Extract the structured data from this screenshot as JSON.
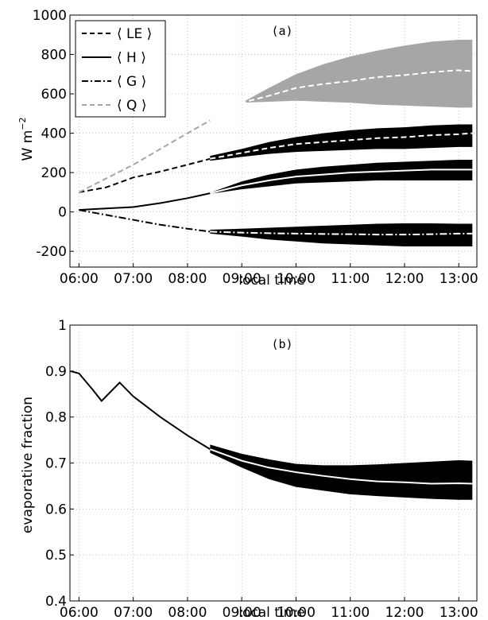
{
  "colors": {
    "black": "#000000",
    "q_gray": "#a6a6a6",
    "white": "#ffffff",
    "grid": "#b0b0b0"
  },
  "chart_data": [
    {
      "type": "line",
      "panel_label": "(a)",
      "xlabel": "local time",
      "ylabel": "W m",
      "ylabel_superscript": "−2",
      "xlim": [
        "05:50",
        "13:20"
      ],
      "ylim": [
        -280,
        1000
      ],
      "x_ticks": [
        "06:00",
        "07:00",
        "08:00",
        "09:00",
        "10:00",
        "11:00",
        "12:00",
        "13:00"
      ],
      "y_ticks": [
        -200,
        0,
        200,
        400,
        600,
        800,
        1000
      ],
      "grid": true,
      "legend_position": "top-left",
      "legend_entries": [
        "⟨ LE ⟩",
        "⟨ H ⟩",
        "⟨ G ⟩",
        "⟨ Q ⟩"
      ],
      "ensemble_start": "08:25",
      "x": [
        "06:00",
        "06:30",
        "07:00",
        "07:30",
        "08:00",
        "08:25",
        "09:00",
        "09:30",
        "10:00",
        "10:30",
        "11:00",
        "11:30",
        "12:00",
        "12:30",
        "13:00",
        "13:15"
      ],
      "series": [
        {
          "name": "⟨ LE ⟩",
          "style": "dashed-black",
          "mean": [
            100,
            125,
            175,
            205,
            240,
            270,
            300,
            325,
            345,
            355,
            365,
            375,
            380,
            390,
            395,
            400
          ],
          "lower": [
            null,
            null,
            null,
            null,
            null,
            260,
            280,
            295,
            305,
            310,
            315,
            320,
            320,
            325,
            330,
            330
          ],
          "upper": [
            null,
            null,
            null,
            null,
            null,
            285,
            320,
            355,
            380,
            400,
            415,
            425,
            430,
            440,
            445,
            445
          ]
        },
        {
          "name": "⟨ H ⟩",
          "style": "solid-black",
          "mean": [
            10,
            18,
            25,
            45,
            70,
            95,
            135,
            160,
            180,
            190,
            200,
            205,
            210,
            215,
            215,
            215
          ],
          "lower": [
            null,
            null,
            null,
            null,
            null,
            92,
            115,
            130,
            145,
            150,
            155,
            160,
            160,
            160,
            160,
            160
          ],
          "upper": [
            null,
            null,
            null,
            null,
            null,
            98,
            155,
            190,
            215,
            230,
            240,
            250,
            255,
            260,
            265,
            265
          ]
        },
        {
          "name": "⟨ G ⟩",
          "style": "dashdot-black",
          "mean": [
            10,
            -15,
            -40,
            -65,
            -85,
            -100,
            -105,
            -108,
            -110,
            -112,
            -113,
            -115,
            -115,
            -113,
            -110,
            -110
          ],
          "lower": [
            null,
            null,
            null,
            null,
            null,
            -110,
            -125,
            -140,
            -150,
            -160,
            -165,
            -170,
            -175,
            -175,
            -175,
            -175
          ],
          "upper": [
            null,
            null,
            null,
            null,
            null,
            -90,
            -85,
            -80,
            -75,
            -70,
            -65,
            -60,
            -58,
            -58,
            -60,
            -60
          ]
        },
        {
          "name": "⟨ Q ⟩",
          "style": "dashed-gray",
          "mean": [
            100,
            170,
            240,
            320,
            400,
            465,
            555,
            590,
            630,
            650,
            665,
            685,
            695,
            710,
            720,
            715
          ],
          "lower": [
            null,
            null,
            null,
            null,
            null,
            465,
            555,
            560,
            565,
            560,
            555,
            545,
            540,
            535,
            530,
            530
          ],
          "upper": [
            null,
            null,
            null,
            null,
            null,
            465,
            555,
            630,
            700,
            750,
            790,
            820,
            845,
            865,
            875,
            875
          ]
        }
      ]
    },
    {
      "type": "line",
      "panel_label": "(b)",
      "xlabel": "local time",
      "ylabel": "evaporative fraction",
      "xlim": [
        "05:50",
        "13:20"
      ],
      "ylim": [
        0.4,
        1
      ],
      "x_ticks": [
        "06:00",
        "07:00",
        "08:00",
        "09:00",
        "10:00",
        "11:00",
        "12:00",
        "13:00"
      ],
      "y_ticks": [
        0.4,
        0.5,
        0.6,
        0.7,
        0.8,
        0.9,
        1
      ],
      "grid": true,
      "ensemble_start": "08:25",
      "x": [
        "05:50",
        "06:00",
        "06:15",
        "06:25",
        "06:35",
        "06:45",
        "07:00",
        "07:30",
        "08:00",
        "08:25",
        "09:00",
        "09:30",
        "10:00",
        "10:30",
        "11:00",
        "11:30",
        "12:00",
        "12:30",
        "13:00",
        "13:15"
      ],
      "series": [
        {
          "style": "solid-black",
          "mean": [
            0.9,
            0.895,
            0.86,
            0.835,
            0.855,
            0.875,
            0.845,
            0.8,
            0.76,
            0.73,
            0.705,
            0.69,
            0.68,
            0.672,
            0.665,
            0.66,
            0.658,
            0.655,
            0.656,
            0.655
          ],
          "lower": [
            null,
            null,
            null,
            null,
            null,
            null,
            null,
            null,
            null,
            0.722,
            0.69,
            0.665,
            0.648,
            0.64,
            0.632,
            0.628,
            0.625,
            0.622,
            0.62,
            0.62
          ],
          "upper": [
            null,
            null,
            null,
            null,
            null,
            null,
            null,
            null,
            null,
            0.74,
            0.72,
            0.708,
            0.698,
            0.695,
            0.695,
            0.697,
            0.7,
            0.703,
            0.706,
            0.705
          ]
        }
      ]
    }
  ]
}
